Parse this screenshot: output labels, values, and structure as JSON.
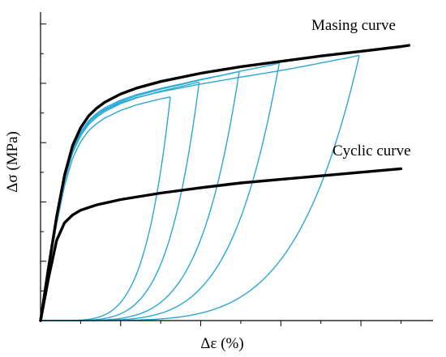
{
  "chart_data": {
    "type": "line",
    "title": "",
    "xlabel": "Δε (%)",
    "ylabel": "Δσ (MPa)",
    "xlim": [
      0,
      4.9
    ],
    "ylim": [
      0,
      5.2
    ],
    "x_major_ticks": [
      1,
      2,
      3,
      4
    ],
    "y_major_ticks": [
      1,
      2,
      3,
      4,
      5
    ],
    "grid": false,
    "legend": "none",
    "colors": {
      "masing": "#000000",
      "cyclic": "#000000",
      "hysteresis": "#29a8d6"
    },
    "series": [
      {
        "name": "Masing curve",
        "label_text": "Masing curve",
        "color": "#000000",
        "x": [
          0,
          0.1,
          0.2,
          0.3,
          0.4,
          0.5,
          0.6,
          0.7,
          0.8,
          1.0,
          1.2,
          1.5,
          2.0,
          2.5,
          3.0,
          3.5,
          4.0,
          4.5,
          4.6
        ],
        "y": [
          0,
          0.9,
          1.75,
          2.45,
          2.95,
          3.25,
          3.45,
          3.58,
          3.68,
          3.82,
          3.92,
          4.03,
          4.17,
          4.28,
          4.37,
          4.46,
          4.54,
          4.62,
          4.64
        ]
      },
      {
        "name": "Cyclic curve",
        "label_text": "Cyclic curve",
        "color": "#000000",
        "x": [
          0,
          0.1,
          0.2,
          0.3,
          0.4,
          0.5,
          0.7,
          1.0,
          1.5,
          2.0,
          2.5,
          3.0,
          3.5,
          4.0,
          4.5
        ],
        "y": [
          0,
          0.72,
          1.35,
          1.65,
          1.78,
          1.86,
          1.95,
          2.04,
          2.15,
          2.24,
          2.32,
          2.38,
          2.44,
          2.5,
          2.56
        ]
      }
    ],
    "hysteresis_loops": [
      {
        "tip": [
          1.62,
          3.77
        ]
      },
      {
        "tip": [
          1.98,
          4.02
        ]
      },
      {
        "tip": [
          2.48,
          4.2
        ]
      },
      {
        "tip": [
          2.98,
          4.34
        ]
      },
      {
        "tip": [
          3.98,
          4.47
        ]
      }
    ]
  }
}
